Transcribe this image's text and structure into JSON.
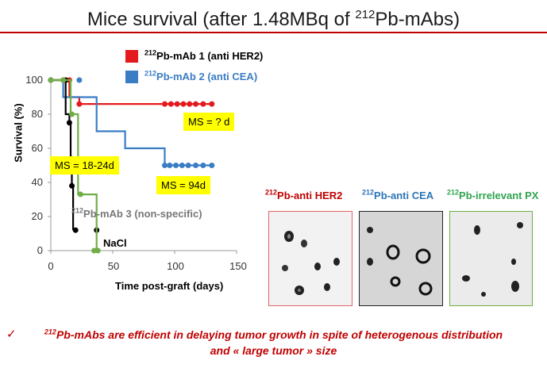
{
  "slide": {
    "title_prefix": "Mice survival (after 1.48MBq of ",
    "title_sup": "212",
    "title_suffix": "Pb-mAbs)",
    "conclusion_line1": "212Pb-mAbs are efficient in delaying tumor growth in spite of heterogenous distribution",
    "conclusion_line2": "and « large tumor » size",
    "conclusion_sup": "212",
    "conclusion_line1_rest": "Pb-mAbs are efficient in delaying tumor growth in spite of heterogenous distribution"
  },
  "chart_data": {
    "type": "line",
    "subtype": "kaplan-meier step",
    "xlabel": "Time  post-graft (days)",
    "ylabel": "Survival (%)",
    "xlim": [
      0,
      150
    ],
    "ylim": [
      0,
      100
    ],
    "xticks": [
      "0",
      "50",
      "100",
      "150"
    ],
    "yticks": [
      "0",
      "20",
      "40",
      "60",
      "80",
      "100"
    ],
    "grid": false,
    "legend_position": "top-right",
    "legend": [
      {
        "sup": "212",
        "text": "Pb-mAb 1 (anti HER2)",
        "color": "#e41a1c"
      },
      {
        "sup": "212",
        "text": "Pb-mAb 2 (anti CEA)",
        "color": "#3a7dc4"
      }
    ],
    "series": [
      {
        "name": "212Pb-mAb 1 (anti HER2)",
        "color": "#e41a1c",
        "x": [
          0,
          15,
          15,
          23,
          23,
          130
        ],
        "y": [
          100,
          100,
          90,
          90,
          86,
          86
        ],
        "markers_x": [
          0,
          10,
          15,
          23,
          92,
          97,
          102,
          107,
          112,
          117,
          123,
          130
        ],
        "markers_y": [
          100,
          100,
          100,
          86,
          86,
          86,
          86,
          86,
          86,
          86,
          86,
          86
        ]
      },
      {
        "name": "212Pb-mAb 2 (anti CEA)",
        "color": "#3a7dc4",
        "x": [
          0,
          10,
          10,
          37,
          37,
          60,
          60,
          92,
          92,
          130
        ],
        "y": [
          100,
          100,
          90,
          90,
          70,
          70,
          60,
          60,
          50,
          50
        ],
        "markers_x": [
          0,
          23,
          92,
          96,
          101,
          106,
          111,
          117,
          123,
          130
        ],
        "markers_y": [
          100,
          100,
          50,
          50,
          50,
          50,
          50,
          50,
          50,
          50
        ]
      },
      {
        "name": "212Pb-mAb 3 (non-specific)",
        "color": "#000000",
        "x": [
          0,
          12,
          12,
          15,
          15,
          16,
          16,
          17,
          17,
          18,
          18
        ],
        "y": [
          100,
          100,
          80,
          80,
          75,
          75,
          55,
          55,
          38,
          38,
          12
        ],
        "markers_x": [
          12,
          15,
          17,
          20,
          37
        ],
        "markers_y": [
          100,
          75,
          38,
          12,
          12
        ]
      },
      {
        "name": "NaCl",
        "color": "#70ad47",
        "x": [
          0,
          16,
          16,
          22,
          22,
          37,
          37
        ],
        "y": [
          100,
          100,
          80,
          80,
          33,
          33,
          0
        ],
        "markers_x": [
          0,
          10,
          17,
          24,
          35,
          38
        ],
        "markers_y": [
          100,
          100,
          80,
          33,
          0,
          0
        ]
      }
    ],
    "annotations": [
      {
        "text": "MS =  ? d"
      },
      {
        "text": "MS = 18-24d"
      },
      {
        "text": "MS = 94d"
      }
    ],
    "series_labels": {
      "mab3_sup": "212",
      "mab3_text": "Pb-mAb 3 (non-specific)",
      "nacl": "NaCl"
    }
  },
  "images": [
    {
      "sup": "212",
      "caption": "Pb-anti HER2",
      "caption_color": "#c00000",
      "border_color": "#e06666"
    },
    {
      "sup": "212",
      "caption": "Pb-anti CEA",
      "caption_color": "#2e75b6",
      "border_color": "#222222"
    },
    {
      "sup": "212",
      "caption": "Pb-irrelevant  PX",
      "caption_color": "#2ea44f",
      "border_color": "#70ad47"
    }
  ]
}
